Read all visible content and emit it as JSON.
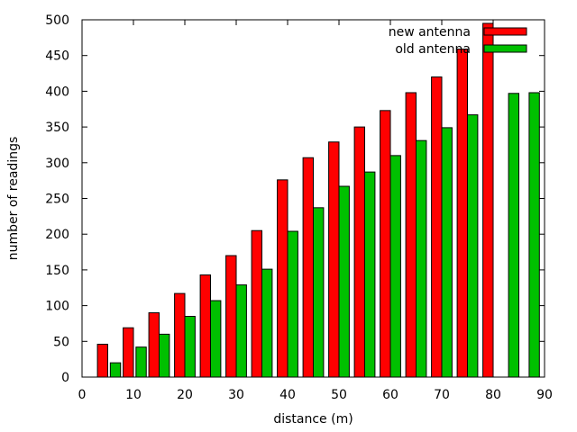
{
  "chart_data": {
    "type": "bar",
    "title": "",
    "xlabel": "distance (m)",
    "ylabel": "number of readings",
    "xlim": [
      0,
      90
    ],
    "ylim": [
      0,
      500
    ],
    "xticks": [
      0,
      10,
      20,
      30,
      40,
      50,
      60,
      70,
      80,
      90
    ],
    "yticks": [
      0,
      50,
      100,
      150,
      200,
      250,
      300,
      350,
      400,
      450,
      500
    ],
    "grid": false,
    "legend_position": "top-right",
    "bar_width": 2,
    "series": [
      {
        "name": "new antenna",
        "color": "#ff0000",
        "x": [
          4,
          9,
          14,
          19,
          24,
          29,
          34,
          39,
          44,
          49,
          54,
          59,
          64,
          69,
          74,
          79
        ],
        "values": [
          46,
          69,
          90,
          117,
          143,
          170,
          205,
          276,
          307,
          329,
          350,
          373,
          398,
          420,
          459,
          495
        ]
      },
      {
        "name": "old antenna",
        "color": "#00c000",
        "x": [
          6.5,
          11.5,
          16,
          21,
          26,
          31,
          36,
          41,
          46,
          51,
          56,
          61,
          66,
          71,
          76,
          84,
          88
        ],
        "values": [
          20,
          42,
          60,
          85,
          107,
          129,
          151,
          204,
          237,
          267,
          287,
          310,
          331,
          349,
          367,
          397,
          398
        ]
      }
    ]
  }
}
